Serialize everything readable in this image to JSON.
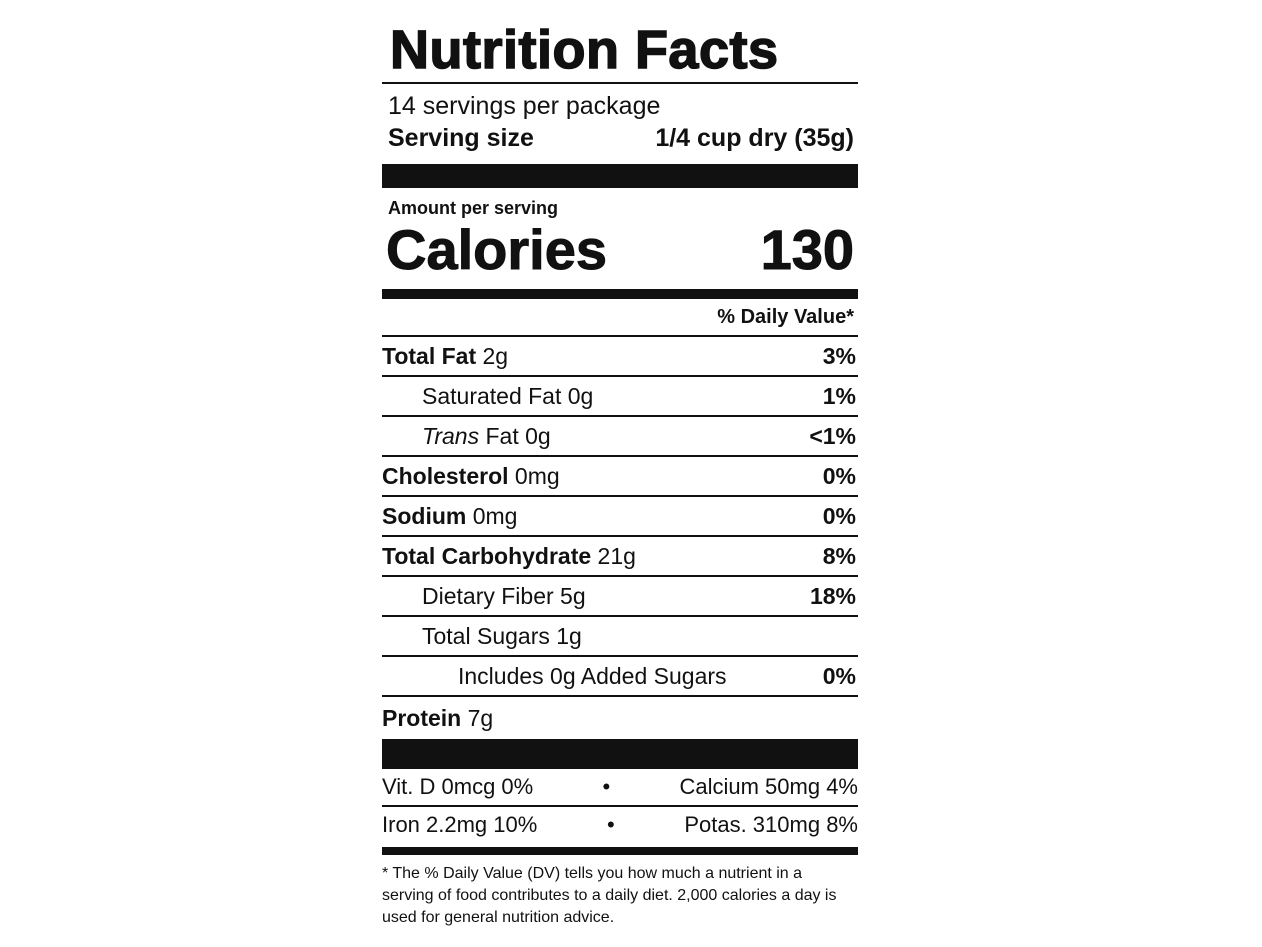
{
  "title": "Nutrition Facts",
  "servings": "14 servings per package",
  "serving_size": {
    "label": "Serving size",
    "value": "1/4 cup dry (35g)"
  },
  "amount_per_serving": "Amount per serving",
  "calories": {
    "label": "Calories",
    "value": 130
  },
  "dv_header": "% Daily Value*",
  "nutrients": [
    {
      "label": "Total Fat",
      "amount": "2g",
      "dv": "3%"
    },
    {
      "label": "Saturated Fat 0g",
      "dv": "1%"
    },
    {
      "prefix": "Trans",
      "label": "Fat 0g",
      "dv": "<1%"
    },
    {
      "label": "Cholesterol",
      "amount": "0mg",
      "dv": "0%"
    },
    {
      "label": "Sodium",
      "amount": "0mg",
      "dv": "0%"
    },
    {
      "label": "Total Carbohydrate",
      "amount": "21g",
      "dv": "8%"
    },
    {
      "label": "Dietary Fiber 5g",
      "dv": "18%"
    },
    {
      "label": "Total Sugars 1g"
    },
    {
      "label": "Includes 0g Added Sugars",
      "dv": "0%"
    },
    {
      "label": "Protein",
      "amount": "7g"
    }
  ],
  "vitamins": [
    [
      "Vit. D 0mcg 0%",
      "Calcium 50mg 4%"
    ],
    [
      "Iron 2.2mg 10%",
      "Potas. 310mg 8%"
    ]
  ],
  "footnote": "* The % Daily Value (DV) tells you how much a nutrient in a serving of food contributes to a daily diet. 2,000 calories a day is used for general nutrition advice."
}
